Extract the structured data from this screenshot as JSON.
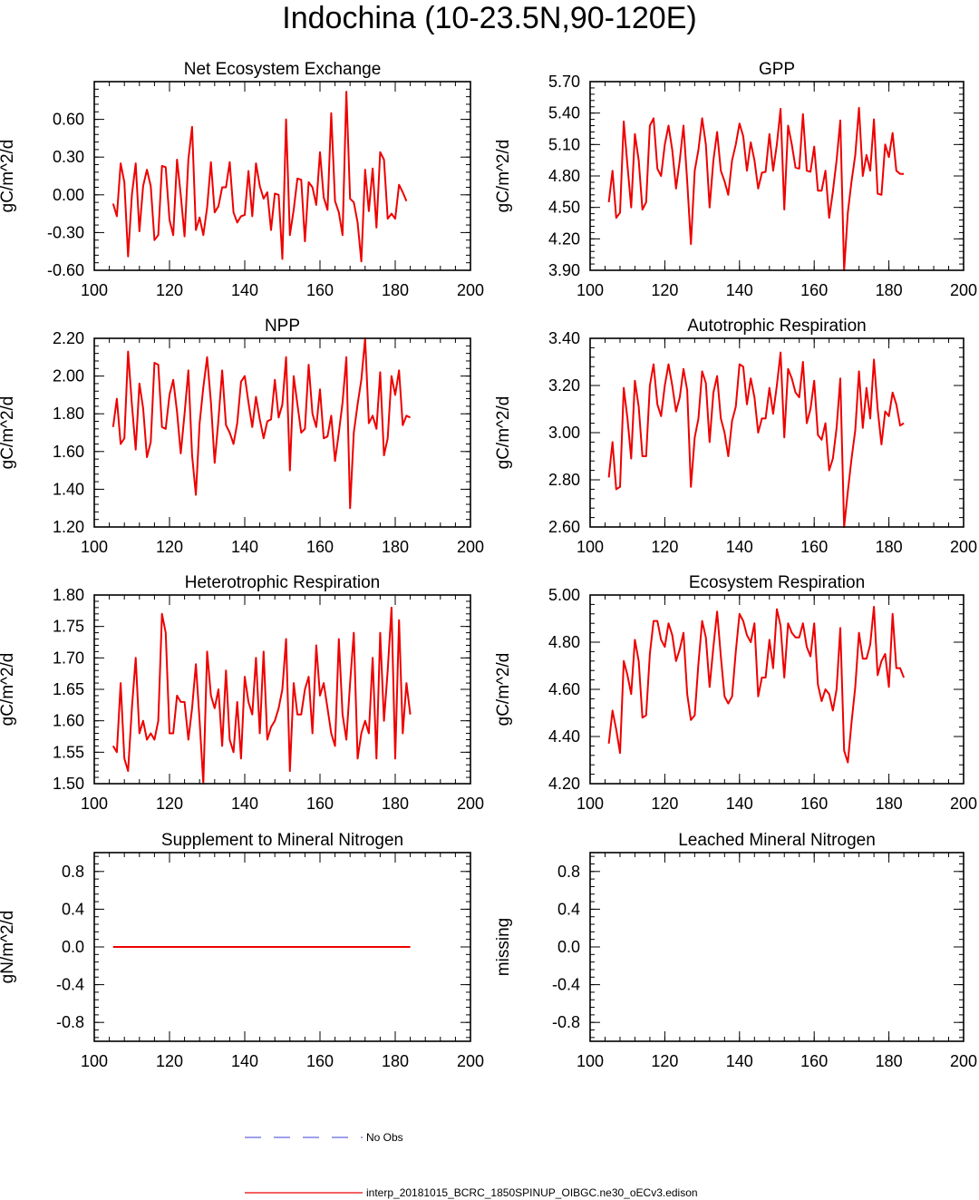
{
  "title": "Indochina (10-23.5N,90-120E)",
  "legend": {
    "obs_label": "No Obs",
    "model_label": "interp_20181015_BCRC_1850SPINUP_OIBGC.ne30_oECv3.edison",
    "obs_color": "#6666dd",
    "model_color": "#ee0000"
  },
  "chart_data": [
    {
      "type": "line",
      "title": "Net Ecosystem Exchange",
      "ylabel": "gC/m^2/d",
      "xlim": [
        100,
        200
      ],
      "ylim": [
        -0.6,
        0.9
      ],
      "xticks": [
        100,
        120,
        140,
        160,
        180,
        200
      ],
      "xtick_labels": [
        "100",
        "120",
        "140",
        "160",
        "180",
        "200"
      ],
      "yticks": [
        -0.6,
        -0.3,
        0.0,
        0.3,
        0.6
      ],
      "ytick_labels": [
        "-0.60",
        "-0.30",
        "0.00",
        "0.30",
        "0.60"
      ],
      "x_start": 105,
      "color": "#ee0000",
      "values": [
        -0.07,
        -0.17,
        0.25,
        0.1,
        -0.49,
        0.0,
        0.25,
        -0.29,
        0.07,
        0.2,
        0.07,
        -0.36,
        -0.32,
        0.23,
        0.22,
        -0.2,
        -0.32,
        0.28,
        0.0,
        -0.33,
        0.28,
        0.54,
        -0.28,
        -0.18,
        -0.32,
        -0.1,
        0.26,
        -0.14,
        -0.09,
        0.06,
        0.06,
        0.26,
        -0.14,
        -0.22,
        -0.17,
        -0.16,
        0.19,
        -0.17,
        0.25,
        0.07,
        -0.03,
        0.02,
        -0.28,
        0.01,
        0.0,
        -0.51,
        0.6,
        -0.32,
        -0.12,
        0.13,
        0.12,
        -0.37,
        0.1,
        0.06,
        -0.08,
        0.34,
        -0.02,
        -0.12,
        0.65,
        -0.05,
        -0.14,
        -0.32,
        0.82,
        -0.03,
        -0.06,
        -0.22,
        -0.53,
        0.2,
        -0.13,
        0.21,
        -0.26,
        0.34,
        0.28,
        -0.19,
        -0.15,
        -0.19,
        0.08,
        0.02,
        -0.05
      ]
    },
    {
      "type": "line",
      "title": "GPP",
      "ylabel": "gC/m^2/d",
      "xlim": [
        100,
        200
      ],
      "ylim": [
        3.9,
        5.7
      ],
      "xticks": [
        100,
        120,
        140,
        160,
        180,
        200
      ],
      "xtick_labels": [
        "100",
        "120",
        "140",
        "160",
        "180",
        "200"
      ],
      "yticks": [
        3.9,
        4.2,
        4.5,
        4.8,
        5.1,
        5.4,
        5.7
      ],
      "ytick_labels": [
        "3.90",
        "4.20",
        "4.50",
        "4.80",
        "5.10",
        "5.40",
        "5.70"
      ],
      "x_start": 105,
      "color": "#ee0000",
      "values": [
        4.55,
        4.85,
        4.4,
        4.45,
        5.32,
        4.9,
        4.5,
        5.2,
        4.95,
        4.48,
        4.55,
        5.28,
        5.35,
        4.87,
        4.8,
        5.1,
        5.28,
        5.05,
        4.68,
        4.95,
        5.28,
        4.75,
        4.15,
        4.85,
        5.05,
        5.35,
        5.1,
        4.5,
        4.95,
        5.22,
        4.85,
        4.75,
        4.62,
        4.95,
        5.1,
        5.3,
        5.18,
        4.85,
        5.12,
        4.95,
        4.68,
        4.83,
        4.84,
        5.2,
        4.85,
        5.1,
        5.44,
        4.48,
        5.28,
        5.1,
        4.88,
        4.87,
        5.39,
        4.85,
        4.84,
        5.08,
        4.66,
        4.66,
        4.85,
        4.4,
        4.65,
        4.95,
        5.33,
        3.9,
        4.45,
        4.75,
        5.0,
        5.45,
        4.8,
        5.0,
        4.85,
        5.34,
        4.63,
        4.62,
        5.1,
        4.98,
        5.21,
        4.85,
        4.82,
        4.82
      ]
    },
    {
      "type": "line",
      "title": "NPP",
      "ylabel": "gC/m^2/d",
      "xlim": [
        100,
        200
      ],
      "ylim": [
        1.2,
        2.2
      ],
      "xticks": [
        100,
        120,
        140,
        160,
        180,
        200
      ],
      "xtick_labels": [
        "100",
        "120",
        "140",
        "160",
        "180",
        "200"
      ],
      "yticks": [
        1.2,
        1.4,
        1.6,
        1.8,
        2.0,
        2.2
      ],
      "ytick_labels": [
        "1.20",
        "1.40",
        "1.60",
        "1.80",
        "2.00",
        "2.20"
      ],
      "x_start": 105,
      "color": "#ee0000",
      "values": [
        1.73,
        1.88,
        1.64,
        1.67,
        2.13,
        1.85,
        1.61,
        1.96,
        1.83,
        1.57,
        1.65,
        2.07,
        2.06,
        1.73,
        1.72,
        1.9,
        1.98,
        1.81,
        1.59,
        1.8,
        2.03,
        1.58,
        1.37,
        1.75,
        1.94,
        2.1,
        1.86,
        1.54,
        1.77,
        2.03,
        1.74,
        1.7,
        1.64,
        1.75,
        1.97,
        2.0,
        1.86,
        1.73,
        1.89,
        1.77,
        1.67,
        1.76,
        1.77,
        1.98,
        1.78,
        1.85,
        2.1,
        1.5,
        2.0,
        1.85,
        1.7,
        1.72,
        2.06,
        1.8,
        1.73,
        1.93,
        1.67,
        1.68,
        1.79,
        1.55,
        1.7,
        1.86,
        2.1,
        1.3,
        1.7,
        1.85,
        1.98,
        2.2,
        1.75,
        1.79,
        1.72,
        2.02,
        1.58,
        1.67,
        2.0,
        1.9,
        2.03,
        1.74,
        1.79,
        1.78
      ]
    },
    {
      "type": "line",
      "title": "Autotrophic Respiration",
      "ylabel": "gC/m^2/d",
      "xlim": [
        100,
        200
      ],
      "ylim": [
        2.6,
        3.4
      ],
      "xticks": [
        100,
        120,
        140,
        160,
        180,
        200
      ],
      "xtick_labels": [
        "100",
        "120",
        "140",
        "160",
        "180",
        "200"
      ],
      "yticks": [
        2.6,
        2.8,
        3.0,
        3.2,
        3.4
      ],
      "ytick_labels": [
        "2.60",
        "2.80",
        "3.00",
        "3.20",
        "3.40"
      ],
      "x_start": 105,
      "color": "#ee0000",
      "values": [
        2.81,
        2.96,
        2.76,
        2.77,
        3.19,
        3.06,
        2.89,
        3.22,
        3.11,
        2.9,
        2.9,
        3.2,
        3.29,
        3.12,
        3.07,
        3.2,
        3.29,
        3.2,
        3.09,
        3.15,
        3.27,
        3.18,
        2.77,
        2.98,
        3.06,
        3.26,
        3.21,
        2.96,
        3.17,
        3.24,
        3.06,
        3.0,
        2.9,
        3.05,
        3.11,
        3.29,
        3.28,
        3.12,
        3.23,
        3.15,
        3.0,
        3.06,
        3.06,
        3.19,
        3.08,
        3.2,
        3.34,
        2.98,
        3.27,
        3.23,
        3.17,
        3.15,
        3.3,
        3.04,
        3.1,
        3.22,
        2.99,
        2.97,
        3.04,
        2.84,
        2.89,
        3.02,
        3.23,
        2.6,
        2.75,
        2.89,
        3.01,
        3.26,
        3.02,
        3.19,
        3.06,
        3.31,
        3.1,
        2.95,
        3.09,
        3.07,
        3.17,
        3.12,
        3.03,
        3.04
      ]
    },
    {
      "type": "line",
      "title": "Heterotrophic Respiration",
      "ylabel": "gC/m^2/d",
      "xlim": [
        100,
        200
      ],
      "ylim": [
        1.5,
        1.8
      ],
      "xticks": [
        100,
        120,
        140,
        160,
        180,
        200
      ],
      "xtick_labels": [
        "100",
        "120",
        "140",
        "160",
        "180",
        "200"
      ],
      "yticks": [
        1.5,
        1.55,
        1.6,
        1.65,
        1.7,
        1.75,
        1.8
      ],
      "ytick_labels": [
        "1.50",
        "1.55",
        "1.60",
        "1.65",
        "1.70",
        "1.75",
        "1.80"
      ],
      "x_start": 105,
      "color": "#ee0000",
      "values": [
        1.56,
        1.55,
        1.66,
        1.54,
        1.52,
        1.62,
        1.7,
        1.58,
        1.6,
        1.57,
        1.58,
        1.57,
        1.6,
        1.77,
        1.74,
        1.58,
        1.58,
        1.64,
        1.63,
        1.63,
        1.57,
        1.62,
        1.69,
        1.6,
        1.5,
        1.71,
        1.64,
        1.62,
        1.65,
        1.56,
        1.68,
        1.57,
        1.55,
        1.63,
        1.54,
        1.67,
        1.63,
        1.61,
        1.7,
        1.58,
        1.71,
        1.57,
        1.59,
        1.6,
        1.62,
        1.65,
        1.73,
        1.52,
        1.66,
        1.61,
        1.61,
        1.65,
        1.67,
        1.58,
        1.72,
        1.64,
        1.66,
        1.62,
        1.58,
        1.56,
        1.73,
        1.61,
        1.57,
        1.66,
        1.74,
        1.54,
        1.58,
        1.6,
        1.58,
        1.7,
        1.54,
        1.74,
        1.6,
        1.68,
        1.78,
        1.54,
        1.76,
        1.58,
        1.66,
        1.61
      ]
    },
    {
      "type": "line",
      "title": "Ecosystem Respiration",
      "ylabel": "gC/m^2/d",
      "xlim": [
        100,
        200
      ],
      "ylim": [
        4.2,
        5.0
      ],
      "xticks": [
        100,
        120,
        140,
        160,
        180,
        200
      ],
      "xtick_labels": [
        "100",
        "120",
        "140",
        "160",
        "180",
        "200"
      ],
      "yticks": [
        4.2,
        4.4,
        4.6,
        4.8,
        5.0
      ],
      "ytick_labels": [
        "4.20",
        "4.40",
        "4.60",
        "4.80",
        "5.00"
      ],
      "x_start": 105,
      "color": "#ee0000",
      "values": [
        4.37,
        4.51,
        4.43,
        4.33,
        4.72,
        4.66,
        4.58,
        4.81,
        4.72,
        4.48,
        4.49,
        4.75,
        4.89,
        4.89,
        4.81,
        4.78,
        4.88,
        4.83,
        4.72,
        4.77,
        4.84,
        4.58,
        4.47,
        4.49,
        4.71,
        4.89,
        4.82,
        4.61,
        4.78,
        4.93,
        4.74,
        4.57,
        4.54,
        4.57,
        4.76,
        4.92,
        4.89,
        4.83,
        4.8,
        4.88,
        4.57,
        4.65,
        4.65,
        4.81,
        4.69,
        4.94,
        4.87,
        4.65,
        4.88,
        4.84,
        4.82,
        4.82,
        4.88,
        4.78,
        4.74,
        4.88,
        4.62,
        4.55,
        4.6,
        4.58,
        4.51,
        4.6,
        4.86,
        4.34,
        4.29,
        4.46,
        4.61,
        4.84,
        4.73,
        4.73,
        4.79,
        4.95,
        4.66,
        4.72,
        4.75,
        4.61,
        4.92,
        4.69,
        4.69,
        4.65
      ]
    },
    {
      "type": "line",
      "title": "Supplement to Mineral Nitrogen",
      "ylabel": "gN/m^2/d",
      "xlim": [
        100,
        200
      ],
      "ylim": [
        -1.0,
        1.0
      ],
      "xticks": [
        100,
        120,
        140,
        160,
        180,
        200
      ],
      "xtick_labels": [
        "100",
        "120",
        "140",
        "160",
        "180",
        "200"
      ],
      "yticks": [
        -0.8,
        -0.4,
        0.0,
        0.4,
        0.8
      ],
      "ytick_labels": [
        "-0.8",
        "-0.4",
        "0.0",
        "0.4",
        "0.8"
      ],
      "x_start": 105,
      "color": "#ee0000",
      "values": [
        0,
        0,
        0,
        0,
        0,
        0,
        0,
        0,
        0,
        0,
        0,
        0,
        0,
        0,
        0,
        0,
        0,
        0,
        0,
        0,
        0,
        0,
        0,
        0,
        0,
        0,
        0,
        0,
        0,
        0,
        0,
        0,
        0,
        0,
        0,
        0,
        0,
        0,
        0,
        0,
        0,
        0,
        0,
        0,
        0,
        0,
        0,
        0,
        0,
        0,
        0,
        0,
        0,
        0,
        0,
        0,
        0,
        0,
        0,
        0,
        0,
        0,
        0,
        0,
        0,
        0,
        0,
        0,
        0,
        0,
        0,
        0,
        0,
        0,
        0,
        0,
        0,
        0,
        0,
        0
      ]
    },
    {
      "type": "line",
      "title": "Leached Mineral Nitrogen",
      "ylabel": "missing",
      "xlim": [
        100,
        200
      ],
      "ylim": [
        -1.0,
        1.0
      ],
      "xticks": [
        100,
        120,
        140,
        160,
        180,
        200
      ],
      "xtick_labels": [
        "100",
        "120",
        "140",
        "160",
        "180",
        "200"
      ],
      "yticks": [
        -0.8,
        -0.4,
        0.0,
        0.4,
        0.8
      ],
      "ytick_labels": [
        "-0.8",
        "-0.4",
        "0.0",
        "0.4",
        "0.8"
      ],
      "x_start": 105,
      "color": "#ee0000",
      "values": []
    }
  ]
}
